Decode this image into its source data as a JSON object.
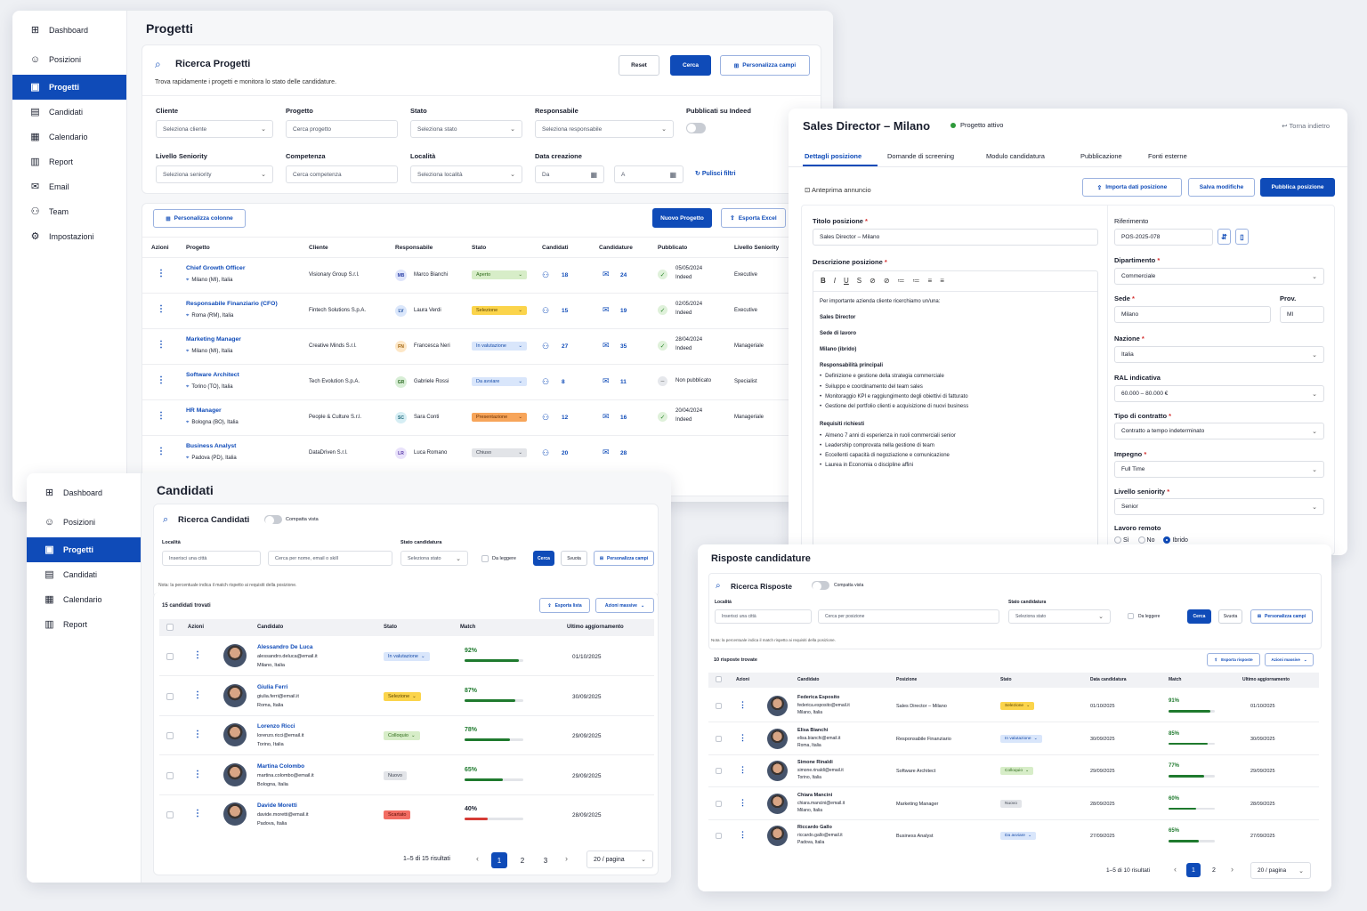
{
  "w1": {
    "nav": [
      "Dashboard",
      "Posizioni",
      "Progetti",
      "Candidati",
      "Calendario",
      "Report",
      "Email",
      "Team",
      "Impostazioni"
    ],
    "title": "Progetti",
    "search_title": "Ricerca Progetti",
    "search_sub": "Trova rapidamente i progetti e monitora lo stato delle candidature.",
    "reset": "Reset",
    "cerca": "Cerca",
    "pers_campi": "Personalizza campi",
    "labels": [
      "Cliente",
      "Progetto",
      "Stato",
      "Responsabile",
      "Pubblicati su Indeed",
      "Livello Seniority",
      "Competenza",
      "Località",
      "Data creazione"
    ],
    "ph": [
      "Seleziona cliente",
      "Cerca progetto",
      "Seleziona stato",
      "Seleziona responsabile",
      "Seleziona seniority",
      "Cerca competenza",
      "Seleziona località",
      "Da",
      "A"
    ],
    "pulisci": "Pulisci filtri",
    "pers_col": "Personalizza colonne",
    "nuovo": "Nuovo Progetto",
    "export": "Esporta Excel",
    "cols": [
      "Azioni",
      "Progetto",
      "Cliente",
      "Responsabile",
      "Stato",
      "Candidati",
      "Candidature",
      "Pubblicato",
      "Livello Seniority"
    ],
    "rows": [
      {
        "name": "Chief Growth Officer",
        "loc": "Milano (MI), Italia",
        "client": "Visionary Group S.r.l.",
        "ini": "MB",
        "resp": "Marco Bianchi",
        "stato": "Aperto",
        "cand": "18",
        "candt": "24",
        "pub1": "05/05/2024",
        "pub2": "Indeed",
        "sen": "Executive"
      },
      {
        "name": "Responsabile Finanziario (CFO)",
        "loc": "Roma (RM), Italia",
        "client": "Fintech Solutions S.p.A.",
        "ini": "LV",
        "resp": "Laura Verdi",
        "stato": "Selezione",
        "cand": "15",
        "candt": "19",
        "pub1": "02/05/2024",
        "pub2": "Indeed",
        "sen": "Executive"
      },
      {
        "name": "Marketing Manager",
        "loc": "Milano (MI), Italia",
        "client": "Creative Minds S.r.l.",
        "ini": "FN",
        "resp": "Francesca Neri",
        "stato": "In valutazione",
        "cand": "27",
        "candt": "35",
        "pub1": "28/04/2024",
        "pub2": "Indeed",
        "sen": "Manageriale"
      },
      {
        "name": "Software Architect",
        "loc": "Torino (TO), Italia",
        "client": "Tech Evolution S.p.A.",
        "ini": "GR",
        "resp": "Gabriele Rossi",
        "stato": "Da avviare",
        "cand": "8",
        "candt": "11",
        "pub1": "Non pubblicato",
        "pub2": "",
        "sen": "Specialist"
      },
      {
        "name": "HR Manager",
        "loc": "Bologna (BO), Italia",
        "client": "People & Culture S.r.l.",
        "ini": "SC",
        "resp": "Sara Conti",
        "stato": "Presentazione",
        "cand": "12",
        "candt": "16",
        "pub1": "20/04/2024",
        "pub2": "Indeed",
        "sen": "Manageriale"
      },
      {
        "name": "Business Analyst",
        "loc": "Padova (PD), Italia",
        "client": "DataDriven S.r.l.",
        "ini": "LR",
        "resp": "Luca Romano",
        "stato": "Chiuso",
        "cand": "20",
        "candt": "28",
        "pub1": "",
        "pub2": "",
        "sen": ""
      }
    ]
  },
  "w2": {
    "title": "Sales Director – Milano",
    "status": "Progetto attivo",
    "back": "Torna indietro",
    "tabs": [
      "Dettagli posizione",
      "Domande di screening",
      "Modulo candidatura",
      "Pubblicazione",
      "Fonti esterne"
    ],
    "preview": "Anteprima annuncio",
    "importa": "Importa dati posizione",
    "salva": "Salva modifiche",
    "pubblica": "Pubblica posizione",
    "titolo_lbl": "Titolo posizione",
    "titolo_val": "Sales Director – Milano",
    "desc_lbl": "Descrizione posizione",
    "toolbar": [
      "B",
      "I",
      "U",
      "S",
      "⊘",
      "⊘",
      "≔",
      "≔",
      "≡",
      "≡"
    ],
    "desc": {
      "intro": "Per importante azienda cliente ricerchiamo un/una:",
      "role": "Sales Director",
      "sede_lbl": "Sede di lavoro",
      "sede": "Milano (ibrido)",
      "resp_lbl": "Responsabilità principali",
      "resp": [
        "Definizione e gestione della strategia commerciale",
        "Sviluppo e coordinamento del team sales",
        "Monitoraggio KPI e raggiungimento degli obiettivi di fatturato",
        "Gestione del portfolio clienti e acquisizione di nuovi business"
      ],
      "req_lbl": "Requisiti richiesti",
      "req": [
        "Almeno 7 anni di esperienza in ruoli commerciali senior",
        "Leadership comprovata nella gestione di team",
        "Eccellenti capacità di negoziazione e comunicazione",
        "Laurea in Economia o discipline affini"
      ]
    },
    "rif_lbl": "Riferimento",
    "rif_val": "POS-2025-078",
    "dip_lbl": "Dipartimento",
    "dip_val": "Commerciale",
    "sede_lbl": "Sede",
    "sede_val": "Milano",
    "prov_lbl": "Prov.",
    "prov_val": "MI",
    "naz_lbl": "Nazione",
    "naz_val": "Italia",
    "ral_lbl": "RAL indicativa",
    "ral_val": "60.000 – 80.000 €",
    "contr_lbl": "Tipo di contratto",
    "contr_val": "Contratto a tempo indeterminato",
    "imp_lbl": "Impegno",
    "imp_val": "Full Time",
    "sen_lbl": "Livello seniority",
    "sen_val": "Senior",
    "rem_lbl": "Lavoro remoto",
    "rem_opts": [
      "Sì",
      "No",
      "Ibrido"
    ]
  },
  "w3": {
    "nav": [
      "Dashboard",
      "Posizioni",
      "Progetti",
      "Candidati",
      "Calendario",
      "Report"
    ],
    "title": "Candidati",
    "search_title": "Ricerca Candidati",
    "compact": "Compatta vista",
    "loc_lbl": "Località",
    "loc_ph": "Inserisci una città",
    "q_ph": "Cerca per nome, email o skill",
    "stato_lbl": "Stato candidatura",
    "stato_ph": "Seleziona stato",
    "daleggere": "Da leggere",
    "cerca": "Cerca",
    "svuota": "Svuota",
    "pers": "Personalizza campi",
    "note": "Nota: la percentuale indica il match rispetto ai requisiti della posizione.",
    "found": "15 candidati trovati",
    "export": "Esporta lista",
    "azioni": "Azioni massive",
    "cols": [
      "Azioni",
      "Candidato",
      "Stato",
      "Match",
      "Ultimo aggiornamento"
    ],
    "rows": [
      {
        "name": "Alessandro De Luca",
        "email": "alessandro.deluca@email.it",
        "city": "Milano, Italia",
        "stato": "In valutazione",
        "match": "92%",
        "date": "01/10/2025"
      },
      {
        "name": "Giulia Ferri",
        "email": "giulia.ferri@email.it",
        "city": "Roma, Italia",
        "stato": "Selezione",
        "match": "87%",
        "date": "30/09/2025"
      },
      {
        "name": "Lorenzo Ricci",
        "email": "lorenzo.ricci@email.it",
        "city": "Torino, Italia",
        "stato": "Colloquio",
        "match": "78%",
        "date": "29/09/2025"
      },
      {
        "name": "Martina Colombo",
        "email": "martina.colombo@email.it",
        "city": "Bologna, Italia",
        "stato": "Nuovo",
        "match": "65%",
        "date": "29/09/2025"
      },
      {
        "name": "Davide Moretti",
        "email": "davide.moretti@email.it",
        "city": "Padova, Italia",
        "stato": "Scartato",
        "match": "40%",
        "date": "28/09/2025"
      }
    ],
    "match_values": [
      92,
      87,
      78,
      65,
      40
    ],
    "pag": "1–5 di 15 risultati",
    "pages": [
      "1",
      "2",
      "3"
    ],
    "per": "20 / pagina"
  },
  "w4": {
    "title": "Risposte candidature",
    "search_title": "Ricerca Risposte",
    "compact": "Compatta vista",
    "loc_lbl": "Località",
    "loc_ph": "Inserisci una città",
    "q_ph": "Cerca per posizione",
    "stato_lbl": "Stato candidatura",
    "stato_ph": "Seleziona stato",
    "daleggere": "Da leggere",
    "cerca": "Cerca",
    "svuota": "Svuota",
    "pers": "Personalizza campi",
    "note": "Nota: la percentuale indica il match rispetto ai requisiti della posizione.",
    "found": "10 risposte trovate",
    "export": "Esporta risposte",
    "azioni": "Azioni massive",
    "cols": [
      "Azioni",
      "Candidato",
      "Posizione",
      "Stato",
      "Data candidatura",
      "Match",
      "Ultimo aggiornamento"
    ],
    "rows": [
      {
        "name": "Federica Esposito",
        "email": "federica.esposito@email.it",
        "city": "Milano, Italia",
        "pos": "Sales Director – Milano",
        "stato": "Selezione",
        "date": "01/10/2025",
        "match": "91%",
        "upd": "01/10/2025"
      },
      {
        "name": "Elisa Bianchi",
        "email": "elisa.bianchi@email.it",
        "city": "Roma, Italia",
        "pos": "Responsabile Finanziario",
        "stato": "In valutazione",
        "date": "30/09/2025",
        "match": "85%",
        "upd": "30/09/2025"
      },
      {
        "name": "Simone Rinaldi",
        "email": "simone.rinaldi@email.it",
        "city": "Torino, Italia",
        "pos": "Software Architect",
        "stato": "Colloquio",
        "date": "29/09/2025",
        "match": "77%",
        "upd": "29/09/2025"
      },
      {
        "name": "Chiara Mancini",
        "email": "chiara.mancini@email.it",
        "city": "Milano, Italia",
        "pos": "Marketing Manager",
        "stato": "Nuovo",
        "date": "28/09/2025",
        "match": "60%",
        "upd": "28/09/2025"
      },
      {
        "name": "Riccardo Gallo",
        "email": "riccardo.gallo@email.it",
        "city": "Padova, Italia",
        "pos": "Business Analyst",
        "stato": "Da avviare",
        "date": "27/09/2025",
        "match": "65%",
        "upd": "27/09/2025"
      }
    ],
    "match_values": [
      91,
      85,
      77,
      60,
      65
    ],
    "pag": "1–5 di 10 risultati",
    "pages": [
      "1",
      "2"
    ],
    "per": "20 / pagina"
  }
}
